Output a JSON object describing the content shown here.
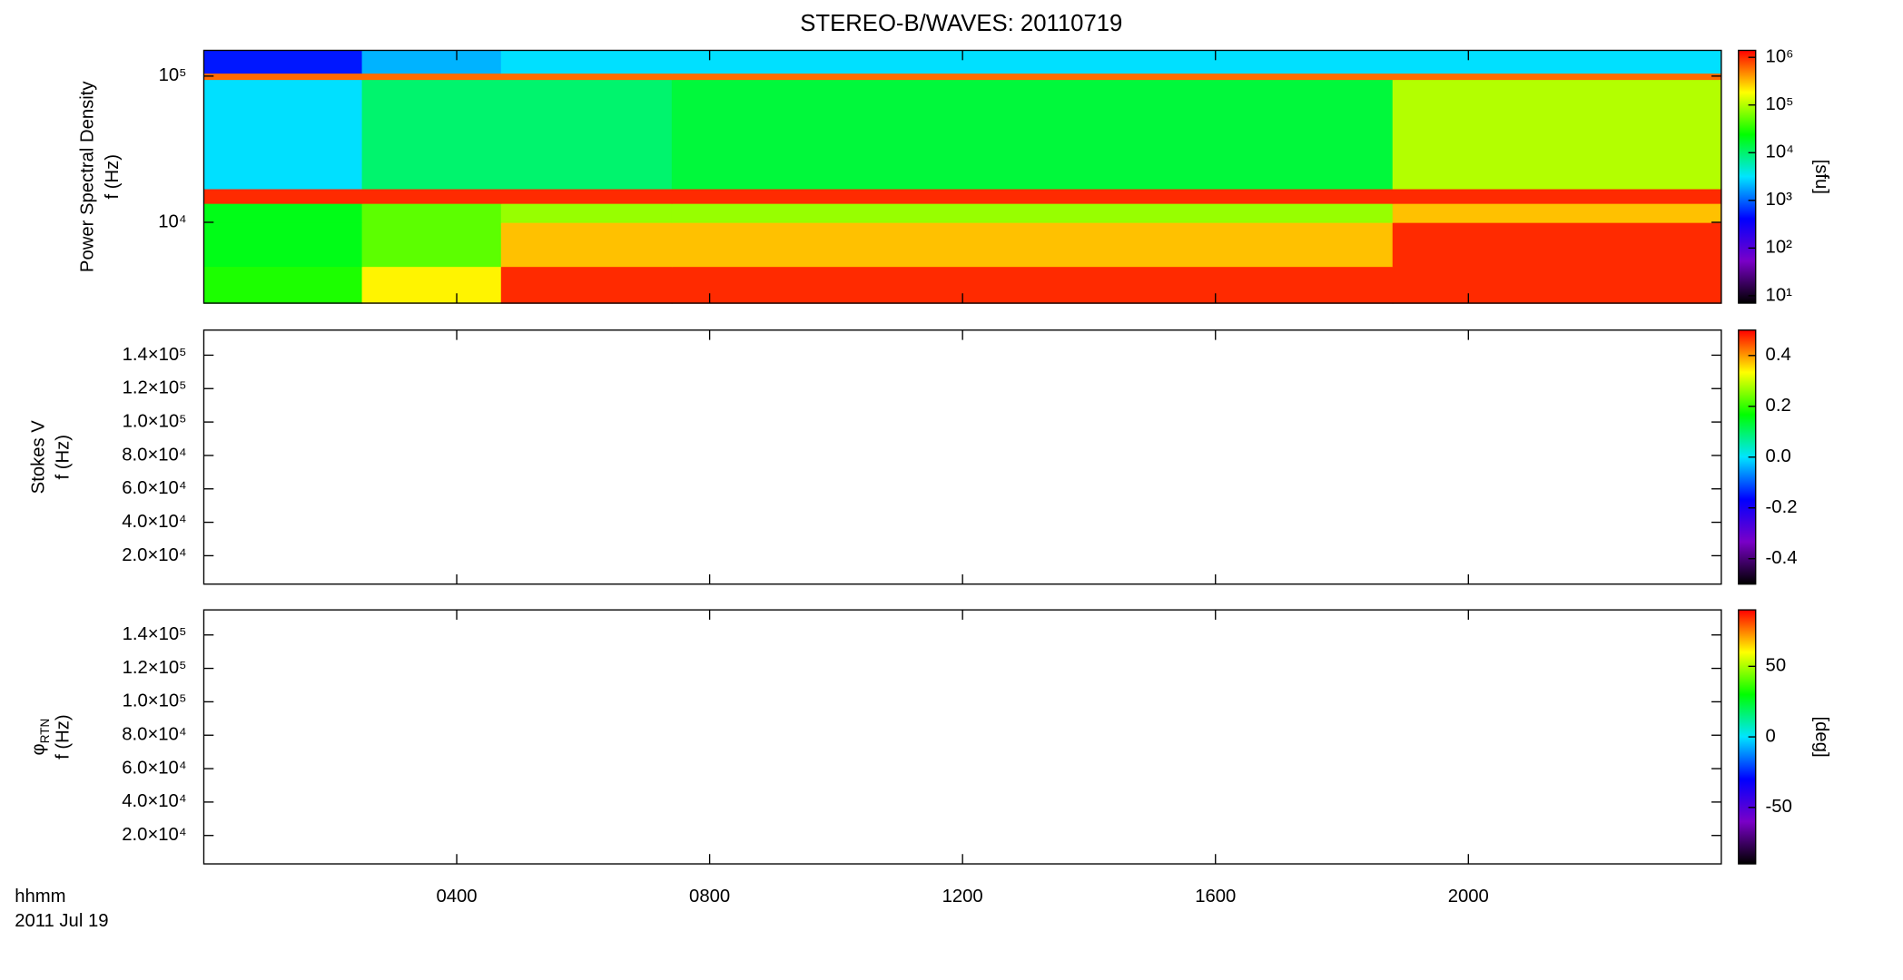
{
  "header": {
    "title": "STEREO-B/WAVES: 20110719",
    "x_label": "hhmm",
    "date_label": "2011 Jul 19"
  },
  "chart_data": [
    {
      "type": "heatmap",
      "ylabel": [
        "Power Spectral Density",
        "f (Hz)"
      ],
      "ylog": true,
      "xlim": [
        0,
        24
      ],
      "xticks": [
        {
          "value": 4,
          "label": "0400"
        },
        {
          "value": 8,
          "label": "0800"
        },
        {
          "value": 12,
          "label": "1200"
        },
        {
          "value": 16,
          "label": "1600"
        },
        {
          "value": 20,
          "label": "2000"
        }
      ],
      "ylim": [
        2800,
        150000
      ],
      "yticks": [
        {
          "value": 10000,
          "label": "10⁴"
        },
        {
          "value": 100000,
          "label": "10⁵"
        }
      ],
      "clog": true,
      "clim": [
        7,
        1400000
      ],
      "cticks": [
        {
          "value": 10,
          "label": "10¹"
        },
        {
          "value": 100,
          "label": "10²"
        },
        {
          "value": 1000,
          "label": "10³"
        },
        {
          "value": 10000,
          "label": "10⁴"
        },
        {
          "value": 100000,
          "label": "10⁵"
        },
        {
          "value": 1000000,
          "label": "10⁶"
        }
      ],
      "clabel": "[sfu]",
      "colormap": [
        "#000000",
        "#7a00c8",
        "#0000ff",
        "#00e5ff",
        "#00ff00",
        "#ffff00",
        "#ff0000"
      ],
      "x_edges": [
        0,
        2.5,
        4.7,
        7.4,
        18.8,
        24
      ],
      "y_edges": [
        2800,
        5000,
        10000,
        13500,
        17000,
        95000,
        105000,
        150000
      ],
      "values": [
        [
          30000,
          200000,
          1000000,
          1000000,
          1000000
        ],
        [
          20000,
          50000,
          300000,
          300000,
          1000000
        ],
        [
          20000,
          50000,
          80000,
          80000,
          300000
        ],
        [
          1000000,
          1000000,
          1000000,
          1000000,
          1000000
        ],
        [
          3000,
          10000,
          10000,
          15000,
          100000
        ],
        [
          600000,
          600000,
          600000,
          600000,
          600000
        ],
        [
          500,
          2000,
          3000,
          3000,
          3000
        ]
      ]
    },
    {
      "type": "heatmap",
      "ylabel": [
        "Stokes V",
        "f (Hz)"
      ],
      "ylog": false,
      "xlim": [
        0,
        24
      ],
      "xticks": [
        {
          "value": 4,
          "label": "0400"
        },
        {
          "value": 8,
          "label": "0800"
        },
        {
          "value": 12,
          "label": "1200"
        },
        {
          "value": 16,
          "label": "1600"
        },
        {
          "value": 20,
          "label": "2000"
        }
      ],
      "ylim": [
        3000,
        155000
      ],
      "yticks": [
        {
          "value": 20000,
          "label": "2.0×10⁴"
        },
        {
          "value": 40000,
          "label": "4.0×10⁴"
        },
        {
          "value": 60000,
          "label": "6.0×10⁴"
        },
        {
          "value": 80000,
          "label": "8.0×10⁴"
        },
        {
          "value": 100000,
          "label": "1.0×10⁵"
        },
        {
          "value": 120000,
          "label": "1.2×10⁵"
        },
        {
          "value": 140000,
          "label": "1.4×10⁵"
        }
      ],
      "clog": false,
      "clim": [
        -0.5,
        0.5
      ],
      "cticks": [
        -0.4,
        -0.2,
        {
          "value": 0,
          "label": "0.0"
        },
        0.2,
        0.4
      ],
      "colormap": [
        "#000000",
        "#7a00c8",
        "#0000ff",
        "#00e5ff",
        "#00ff00",
        "#ffff00",
        "#ff0000"
      ]
    },
    {
      "type": "heatmap",
      "ylabel": [
        "φ",
        "f (Hz)"
      ],
      "ylabel_sub": "RTN",
      "ylog": false,
      "xlim": [
        0,
        24
      ],
      "xticks": [
        {
          "value": 4,
          "label": "0400"
        },
        {
          "value": 8,
          "label": "0800"
        },
        {
          "value": 12,
          "label": "1200"
        },
        {
          "value": 16,
          "label": "1600"
        },
        {
          "value": 20,
          "label": "2000"
        }
      ],
      "ylim": [
        3000,
        155000
      ],
      "yticks": [
        {
          "value": 20000,
          "label": "2.0×10⁴"
        },
        {
          "value": 40000,
          "label": "4.0×10⁴"
        },
        {
          "value": 60000,
          "label": "6.0×10⁴"
        },
        {
          "value": 80000,
          "label": "8.0×10⁴"
        },
        {
          "value": 100000,
          "label": "1.0×10⁵"
        },
        {
          "value": 120000,
          "label": "1.2×10⁵"
        },
        {
          "value": 140000,
          "label": "1.4×10⁵"
        }
      ],
      "clog": false,
      "clim": [
        -90,
        90
      ],
      "cticks": [
        -50,
        0,
        50
      ],
      "clabel": "[deg]",
      "colormap": [
        "#000000",
        "#7a00c8",
        "#0000ff",
        "#00e5ff",
        "#00ff00",
        "#ffff00",
        "#ff0000"
      ]
    }
  ]
}
